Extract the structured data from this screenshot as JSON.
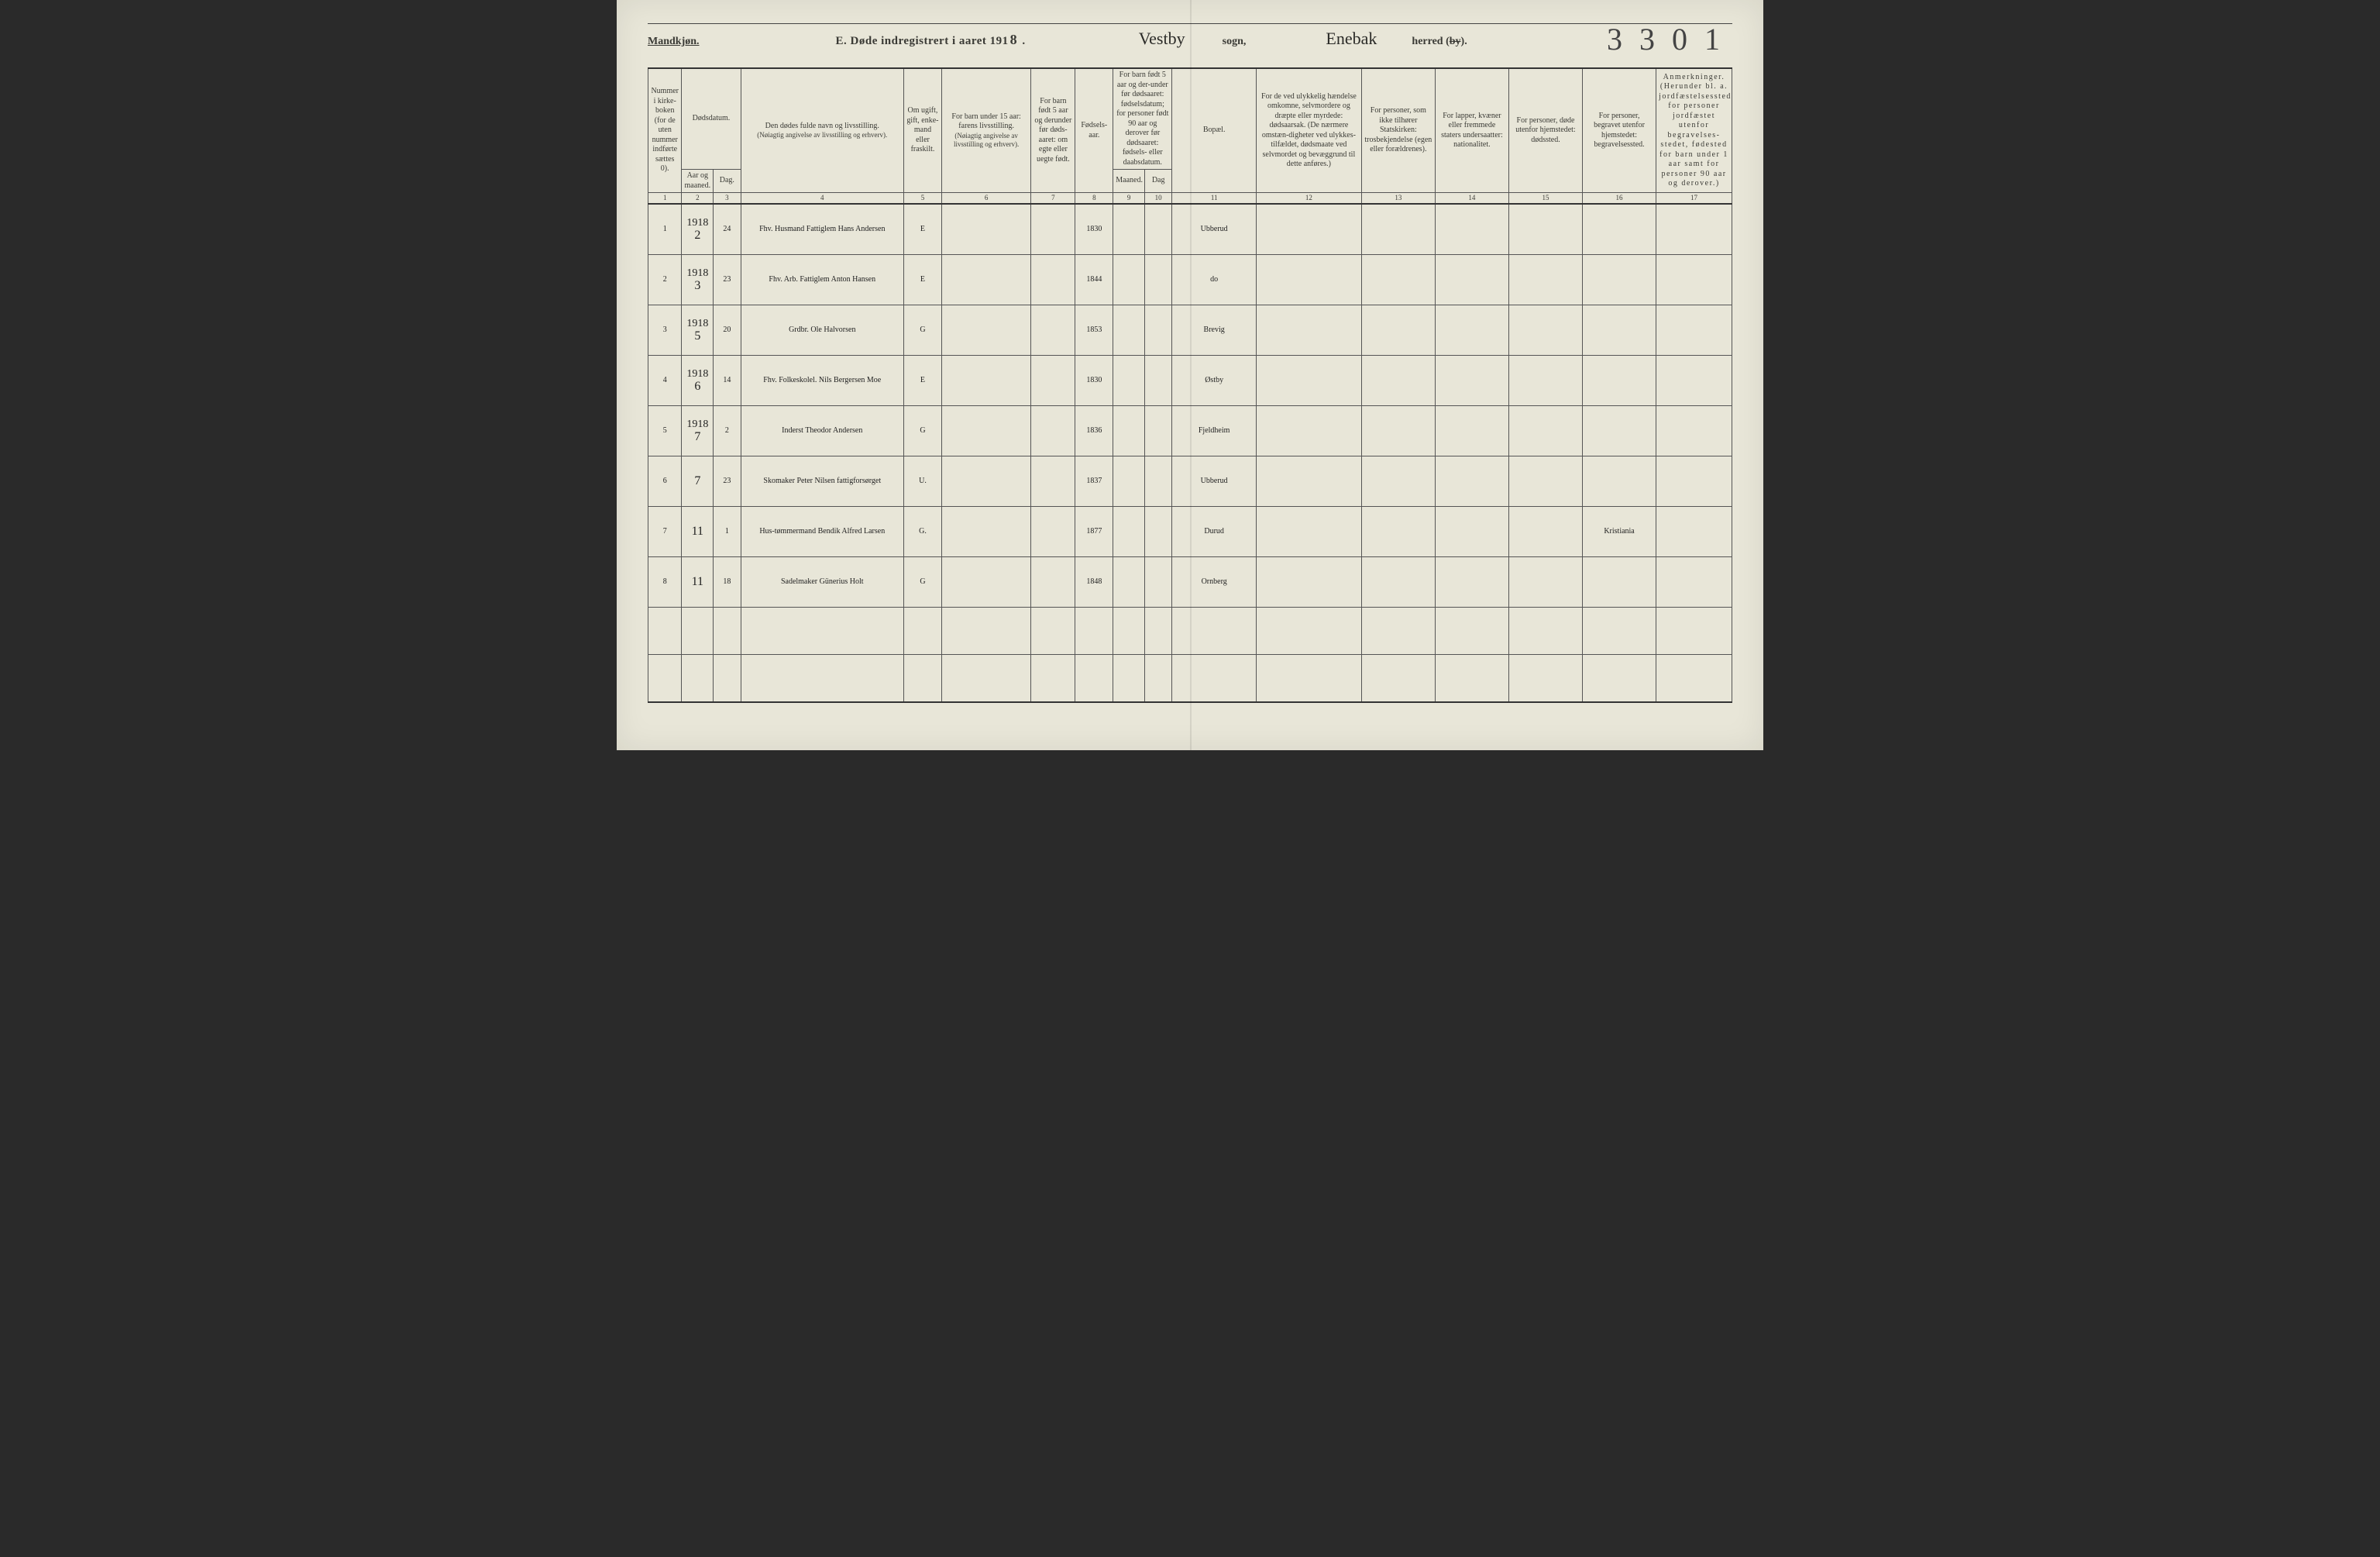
{
  "colors": {
    "paper": "#e8e6d8",
    "ink": "#3a3a35",
    "rule": "#555555",
    "heavy_rule": "#333333",
    "handwriting": "#222222"
  },
  "header": {
    "kjonn": "Mandkjøn.",
    "title_prefix": "E.   Døde indregistrert i aaret 191",
    "year_suffix": "8",
    "title_period": " .",
    "sogn_value": "Vestby",
    "sogn_label": "sogn,",
    "herred_value": "Enebak",
    "herred_label_pre": "herred (",
    "herred_label_strike": "by",
    "herred_label_post": ").",
    "page_number": "3 3 0 1"
  },
  "columns": {
    "c1": "Nummer i kirke-boken (for de uten nummer indførte sættes 0).",
    "c2_group": "Dødsdatum.",
    "c2a": "Aar og maaned.",
    "c2b": "Dag.",
    "c4a": "Den dødes fulde navn og livsstilling.",
    "c4b": "(Nøiagtig angivelse av livsstilling og erhverv).",
    "c5": "Om ugift, gift, enke-mand eller fraskilt.",
    "c6a": "For barn under 15 aar: farens livsstilling.",
    "c6b": "(Nøiagtig angivelse av livsstilling og erhverv).",
    "c7": "For barn født 5 aar og derunder før døds-aaret: om egte eller uegte født.",
    "c8": "Fødsels-aar.",
    "c9_group": "For barn født 5 aar og der-under før dødsaaret: fødselsdatum; for personer født 90 aar og derover før dødsaaret: fødsels- eller daabsdatum.",
    "c9a": "Maaned.",
    "c9b": "Dag",
    "c11": "Bopæl.",
    "c12": "For de ved ulykkelig hændelse omkomne, selvmordere og dræpte eller myrdede: dødsaarsak. (De nærmere omstæn-digheter ved ulykkes-tilfældet, dødsmaate ved selvmordet og bevæggrund til dette anføres.)",
    "c13": "For personer, som ikke tilhører Statskirken: trosbekjendelse (egen eller forældrenes).",
    "c14": "For lapper, kvæner eller fremmede staters undersaatter: nationalitet.",
    "c15": "For personer, døde utenfor hjemstedet: dødssted.",
    "c16": "For personer, begravet utenfor hjemstedet: begravelsessted.",
    "c17": "Anmerkninger. (Herunder bl. a. jordfæstelsessted for personer jordfæstet utenfor begravelses-stedet, fødested for barn under 1 aar samt for personer 90 aar og derover.)",
    "nums": [
      "1",
      "2",
      "3",
      "4",
      "5",
      "6",
      "7",
      "8",
      "9",
      "10",
      "11",
      "12",
      "13",
      "14",
      "15",
      "16",
      "17"
    ]
  },
  "col_widths_pct": [
    3.2,
    3.0,
    2.6,
    15.5,
    3.6,
    8.5,
    4.2,
    3.6,
    3.0,
    2.6,
    8.0,
    10.0,
    7.0,
    7.0,
    7.0,
    7.0,
    7.2
  ],
  "rows": [
    {
      "n": "1",
      "year": "1918",
      "month": "2",
      "day": "24",
      "name": "Fhv. Husmand Fattiglem Hans Andersen",
      "status": "E",
      "birth": "1830",
      "residence": "Ubberud"
    },
    {
      "n": "2",
      "year": "1918",
      "month": "3",
      "day": "23",
      "name": "Fhv. Arb. Fattiglem Anton Hansen",
      "status": "E",
      "birth": "1844",
      "residence": "do"
    },
    {
      "n": "3",
      "year": "1918",
      "month": "5",
      "day": "20",
      "name": "Grdbr. Ole Halvorsen",
      "status": "G",
      "birth": "1853",
      "residence": "Brevig"
    },
    {
      "n": "4",
      "year": "1918",
      "month": "6",
      "day": "14",
      "name": "Fhv. Folkeskolel. Nils Bergersen Moe",
      "status": "E",
      "birth": "1830",
      "residence": "Østby"
    },
    {
      "n": "5",
      "year": "1918",
      "month": "7",
      "day": "2",
      "name": "Inderst Theodor Andersen",
      "status": "G",
      "birth": "1836",
      "residence": "Fjeldheim"
    },
    {
      "n": "6",
      "year": "",
      "month": "7",
      "day": "23",
      "name": "Skomaker Peter Nilsen fattigforsørget",
      "status": "U.",
      "birth": "1837",
      "residence": "Ubberud"
    },
    {
      "n": "7",
      "year": "",
      "month": "11",
      "day": "1",
      "name": "Hus-tømmermand Bendik Alfred Larsen",
      "status": "G.",
      "birth": "1877",
      "residence": "Durud",
      "c16": "Kristiania"
    },
    {
      "n": "8",
      "year": "",
      "month": "11",
      "day": "18",
      "name": "Sadelmaker Günerius Holt",
      "status": "G",
      "birth": "1848",
      "residence": "Ornberg"
    }
  ],
  "empty_rows": 2
}
